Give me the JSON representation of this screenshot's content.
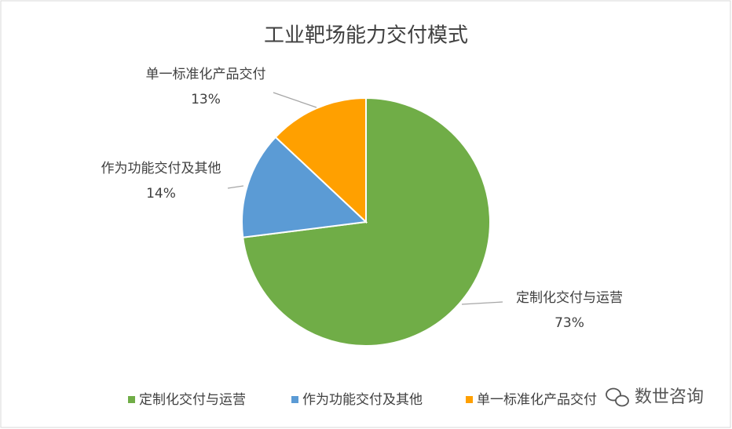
{
  "chart_data": {
    "type": "pie",
    "title": "工业靶场能力交付模式",
    "categories": [
      "定制化交付与运营",
      "作为功能交付及其他",
      "单一标准化产品交付"
    ],
    "values": [
      73,
      14,
      13
    ],
    "value_labels": [
      "73%",
      "14%",
      "13%"
    ],
    "colors": [
      "#70ad47",
      "#5b9bd5",
      "#ffa000"
    ],
    "legend": "bottom"
  },
  "watermark": "数世咨询"
}
